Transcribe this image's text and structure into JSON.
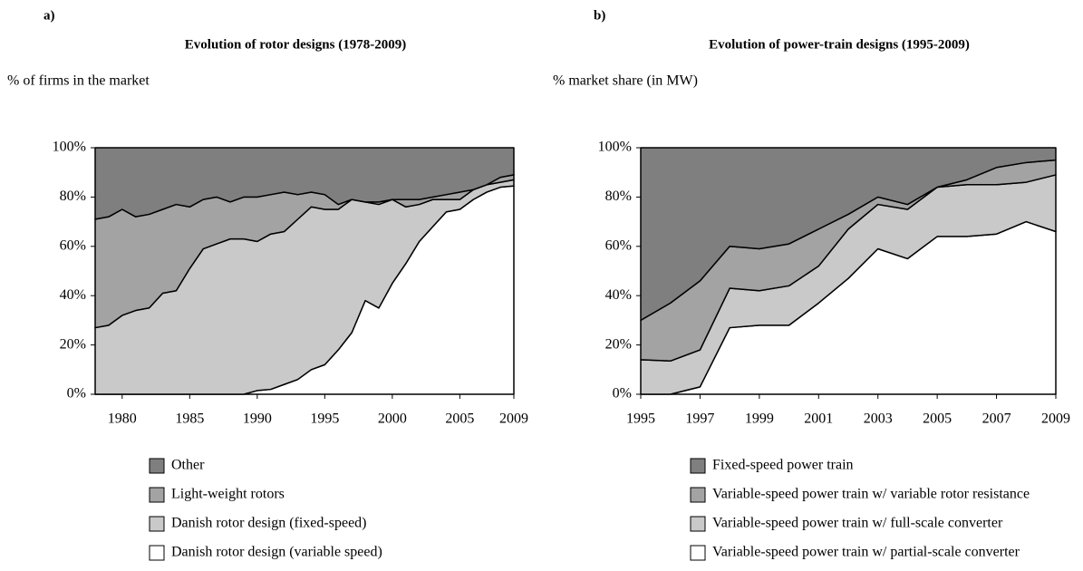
{
  "chart_data": [
    {
      "type": "stacked_area",
      "panel": "a)",
      "title": "Evolution of rotor designs (1978-2009)",
      "ylabel": "% of firms in the market",
      "x": [
        1978,
        1979,
        1980,
        1981,
        1982,
        1983,
        1984,
        1985,
        1986,
        1987,
        1988,
        1989,
        1990,
        1991,
        1992,
        1993,
        1994,
        1995,
        1996,
        1997,
        1998,
        1999,
        2000,
        2001,
        2002,
        2003,
        2004,
        2005,
        2006,
        2007,
        2008,
        2009
      ],
      "xlim": [
        1978,
        2009
      ],
      "xticks": [
        1980,
        1985,
        1990,
        1995,
        2000,
        2005,
        2009
      ],
      "ylim": [
        0,
        100
      ],
      "yticks": [
        {
          "value": 0,
          "label": "0%"
        },
        {
          "value": 20,
          "label": "20%"
        },
        {
          "value": 40,
          "label": "40%"
        },
        {
          "value": 60,
          "label": "60%"
        },
        {
          "value": 80,
          "label": "80%"
        },
        {
          "value": 100,
          "label": "100%"
        }
      ],
      "series": [
        {
          "name": "Other",
          "color": "#7f7f7f",
          "values": [
            29,
            28,
            25,
            28,
            27,
            25,
            23,
            24,
            21,
            20,
            22,
            20,
            20,
            19,
            18,
            19,
            18,
            19,
            23,
            21,
            22,
            22,
            21,
            21,
            21,
            20,
            19,
            18,
            17,
            15,
            12,
            11
          ]
        },
        {
          "name": "Light-weight rotors",
          "color": "#a3a3a3",
          "values": [
            44,
            44,
            43,
            38,
            38,
            34,
            35,
            25,
            20,
            19,
            15,
            17,
            18,
            16,
            16,
            10,
            6,
            6,
            2,
            0,
            0,
            1,
            0,
            3,
            2,
            1,
            2,
            3,
            0,
            0,
            2,
            2
          ]
        },
        {
          "name": "Danish rotor design (fixed-speed)",
          "color": "#c9c9c9",
          "values": [
            27,
            28,
            32,
            34,
            35,
            41,
            42,
            51,
            59,
            61,
            63,
            63,
            60.5,
            63,
            62,
            65,
            66,
            63,
            57,
            54,
            40,
            42,
            34,
            23,
            15,
            11,
            5,
            4,
            4,
            3,
            2,
            2.5
          ]
        },
        {
          "name": "Danish rotor design (variable speed)",
          "color": "#ffffff",
          "values": [
            0,
            0,
            0,
            0,
            0,
            0,
            0,
            0,
            0,
            0,
            0,
            0,
            1.5,
            2,
            4,
            6,
            10,
            12,
            18,
            25,
            38,
            35,
            45,
            53,
            62,
            68,
            74,
            75,
            79,
            82,
            84,
            84.5
          ]
        }
      ]
    },
    {
      "type": "stacked_area",
      "panel": "b)",
      "title": "Evolution of power-train designs (1995-2009)",
      "ylabel": "% market share (in MW)",
      "x": [
        1995,
        1996,
        1997,
        1998,
        1999,
        2000,
        2001,
        2002,
        2003,
        2004,
        2005,
        2006,
        2007,
        2008,
        2009
      ],
      "xlim": [
        1995,
        2009
      ],
      "xticks": [
        1995,
        1997,
        1999,
        2001,
        2003,
        2005,
        2007,
        2009
      ],
      "ylim": [
        0,
        100
      ],
      "yticks": [
        {
          "value": 0,
          "label": "0%"
        },
        {
          "value": 20,
          "label": "20%"
        },
        {
          "value": 40,
          "label": "40%"
        },
        {
          "value": 60,
          "label": "60%"
        },
        {
          "value": 80,
          "label": "80%"
        },
        {
          "value": 100,
          "label": "100%"
        }
      ],
      "series": [
        {
          "name": "Fixed-speed power train",
          "color": "#7f7f7f",
          "values": [
            70,
            63,
            54,
            40,
            41,
            39,
            33,
            27,
            20,
            23,
            16,
            13,
            8,
            6,
            5
          ]
        },
        {
          "name": "Variable-speed power train w/ variable rotor resistance",
          "color": "#a3a3a3",
          "values": [
            16,
            23.5,
            28,
            17,
            17,
            17,
            15,
            6,
            3,
            2,
            0,
            2,
            7,
            8,
            6
          ]
        },
        {
          "name": "Variable-speed power train w/ full-scale converter",
          "color": "#c9c9c9",
          "values": [
            14,
            13.5,
            15,
            16,
            14,
            16,
            15,
            20,
            18,
            20,
            20,
            21,
            20,
            16,
            23
          ]
        },
        {
          "name": "Variable-speed power train w/ partial-scale converter",
          "color": "#ffffff",
          "values": [
            0,
            0,
            3,
            27,
            28,
            28,
            37,
            47,
            59,
            55,
            64,
            64,
            65,
            70,
            66
          ]
        }
      ]
    }
  ]
}
